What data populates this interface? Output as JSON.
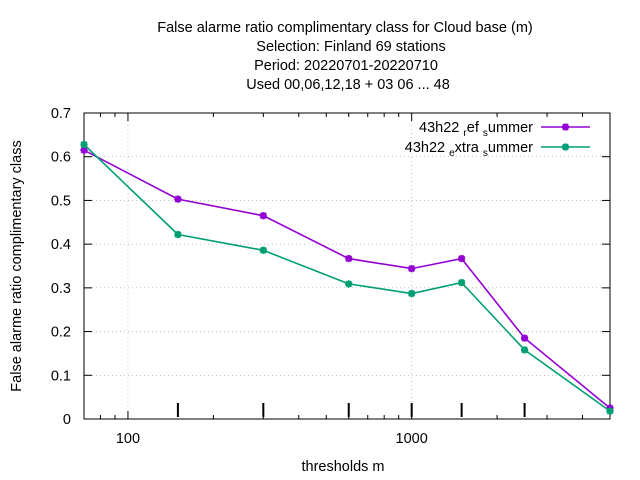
{
  "chart_data": {
    "type": "line",
    "title": [
      "False alarme ratio complimentary class  for Cloud base (m)",
      "Selection: Finland     69 stations",
      "Period: 20220701-20220710",
      "Used  00,06,12,18  + 03 06 ... 48"
    ],
    "xlabel": "thresholds m",
    "ylabel": "False alarme ratio complimentary class",
    "x_scale": "log",
    "xlim": [
      70,
      5000
    ],
    "ylim": [
      0,
      0.7
    ],
    "x_major_ticks": [
      100,
      1000
    ],
    "x_major_tick_labels": [
      "100",
      "1000"
    ],
    "y_ticks": [
      0,
      0.1,
      0.2,
      0.3,
      0.4,
      0.5,
      0.6,
      0.7
    ],
    "y_tick_labels": [
      "0",
      "0.1",
      "0.2",
      "0.3",
      "0.4",
      "0.5",
      "0.6",
      "0.7"
    ],
    "grid": true,
    "legend_position": "top-right",
    "x": [
      70,
      150,
      300,
      600,
      1000,
      1500,
      2500,
      5000
    ],
    "series": [
      {
        "name": "43h22_ref_summer",
        "legend_parts": [
          "43h22 ",
          "r",
          "ef ",
          "s",
          "ummer"
        ],
        "color": "#9400d3",
        "values": [
          0.615,
          0.503,
          0.465,
          0.367,
          0.344,
          0.367,
          0.185,
          0.025
        ]
      },
      {
        "name": "43h22_extra_summer",
        "legend_parts": [
          "43h22 ",
          "e",
          "xtra ",
          "s",
          "ummer"
        ],
        "color": "#009e73",
        "values": [
          0.628,
          0.422,
          0.386,
          0.309,
          0.287,
          0.312,
          0.158,
          0.018
        ]
      }
    ],
    "sample_ticks_x": [
      150,
      300,
      600,
      1000,
      1500,
      2500
    ]
  }
}
